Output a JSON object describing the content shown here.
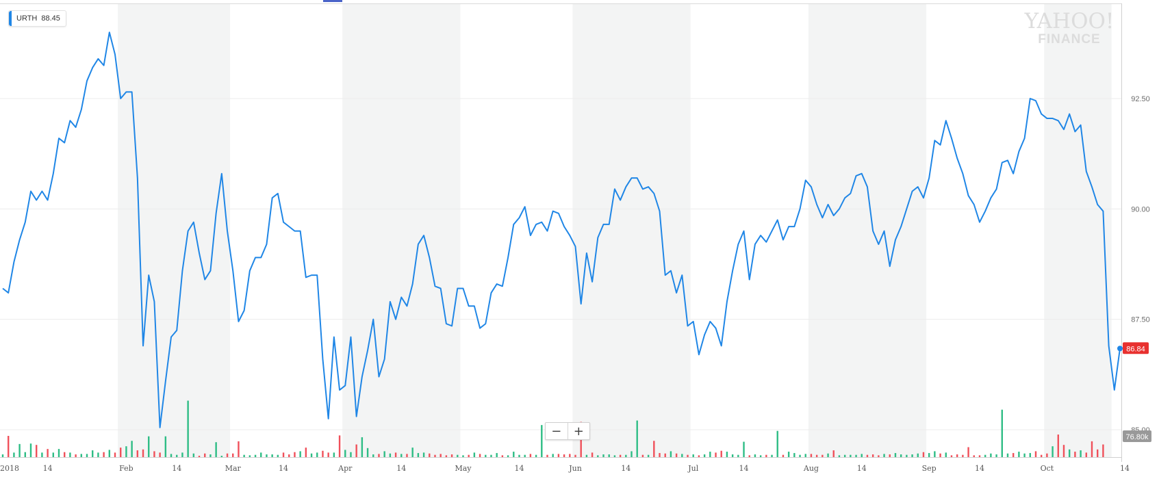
{
  "legend": {
    "symbol": "URTH",
    "value": "88.45"
  },
  "watermark": {
    "line1": "YAHOO!",
    "line2": "FINANCE"
  },
  "zoom": {
    "minus": "−",
    "plus": "+"
  },
  "price_badge": {
    "value": "86.84",
    "color": "#e8312f"
  },
  "volume_badge": {
    "value": "76.80k",
    "color": "#999999"
  },
  "colors": {
    "line": "#1f86e6",
    "up": "#2ebd85",
    "down": "#f0505a",
    "band": "#f3f4f4"
  },
  "chart_data": {
    "type": "line",
    "title": "",
    "x_start": "2018-01-02",
    "x_ticks": [
      "2018",
      "14",
      "Feb",
      "14",
      "Mar",
      "14",
      "Apr",
      "14",
      "May",
      "14",
      "Jun",
      "14",
      "Jul",
      "14",
      "Aug",
      "14",
      "Sep",
      "14",
      "Oct",
      "14"
    ],
    "y_ticks": [
      "92.50",
      "90.00",
      "87.50",
      "85.00"
    ],
    "ylim": [
      84.75,
      94.8
    ],
    "grid": true,
    "series": [
      {
        "name": "URTH",
        "values": [
          88.2,
          88.1,
          88.8,
          89.3,
          89.7,
          90.4,
          90.2,
          90.4,
          90.2,
          90.8,
          91.6,
          91.5,
          92.0,
          91.85,
          92.25,
          92.9,
          93.2,
          93.4,
          93.25,
          94.0,
          93.5,
          92.5,
          92.65,
          92.65,
          90.7,
          86.9,
          88.5,
          87.9,
          85.05,
          86.1,
          87.1,
          87.25,
          88.6,
          89.5,
          89.7,
          89.0,
          88.4,
          88.6,
          89.9,
          90.8,
          89.5,
          88.6,
          87.45,
          87.7,
          88.6,
          88.9,
          88.9,
          89.2,
          90.25,
          90.35,
          89.7,
          89.6,
          89.5,
          89.5,
          88.45,
          88.5,
          88.5,
          86.6,
          85.25,
          87.1,
          85.9,
          86.0,
          87.1,
          85.3,
          86.2,
          86.8,
          87.5,
          86.2,
          86.6,
          87.9,
          87.5,
          88.0,
          87.8,
          88.3,
          89.2,
          89.4,
          88.9,
          88.25,
          88.2,
          87.4,
          87.35,
          88.2,
          88.2,
          87.8,
          87.8,
          87.3,
          87.4,
          88.1,
          88.3,
          88.25,
          88.9,
          89.65,
          89.8,
          90.05,
          89.4,
          89.65,
          89.7,
          89.5,
          89.95,
          89.9,
          89.6,
          89.4,
          89.15,
          87.85,
          89.0,
          88.35,
          89.35,
          89.65,
          89.65,
          90.45,
          90.2,
          90.5,
          90.7,
          90.7,
          90.45,
          90.5,
          90.35,
          89.95,
          88.5,
          88.6,
          88.1,
          88.5,
          87.35,
          87.45,
          86.7,
          87.15,
          87.45,
          87.3,
          86.9,
          87.9,
          88.6,
          89.2,
          89.5,
          88.4,
          89.2,
          89.4,
          89.25,
          89.5,
          89.75,
          89.3,
          89.6,
          89.6,
          90.0,
          90.65,
          90.5,
          90.1,
          89.8,
          90.1,
          89.85,
          90.0,
          90.25,
          90.35,
          90.75,
          90.8,
          90.5,
          89.5,
          89.2,
          89.5,
          88.7,
          89.3,
          89.6,
          90.0,
          90.4,
          90.5,
          90.25,
          90.7,
          91.55,
          91.45,
          92.0,
          91.6,
          91.15,
          90.8,
          90.3,
          90.1,
          89.7,
          89.95,
          90.25,
          90.45,
          91.05,
          91.1,
          90.8,
          91.3,
          91.6,
          92.5,
          92.45,
          92.15,
          92.05,
          92.05,
          92.0,
          91.8,
          92.15,
          91.75,
          91.9,
          90.85,
          90.5,
          90.1,
          89.95,
          86.9,
          85.9,
          86.84
        ]
      }
    ],
    "volume": {
      "values": [
        6,
        47,
        10,
        29,
        11,
        30,
        27,
        10,
        18,
        10,
        18,
        11,
        10,
        6,
        7,
        7,
        15,
        10,
        11,
        16,
        10,
        21,
        24,
        36,
        15,
        17,
        46,
        13,
        10,
        46,
        7,
        5,
        10,
        125,
        8,
        3,
        8,
        6,
        33,
        3,
        8,
        8,
        35,
        5,
        4,
        5,
        10,
        6,
        6,
        5,
        10,
        6,
        11,
        13,
        21,
        8,
        10,
        14,
        10,
        10,
        48,
        16,
        11,
        28,
        44,
        20,
        6,
        7,
        13,
        8,
        10,
        7,
        7,
        21,
        9,
        10,
        8,
        5,
        7,
        4,
        6,
        5,
        4,
        5,
        10,
        7,
        5,
        5,
        9,
        4,
        4,
        12,
        5,
        5,
        7,
        5,
        71,
        5,
        7,
        7,
        6,
        7,
        5,
        78,
        5,
        10,
        4,
        6,
        6,
        4,
        5,
        5,
        13,
        81,
        5,
        5,
        36,
        9,
        8,
        13,
        8,
        7,
        5,
        6,
        4,
        6,
        12,
        10,
        14,
        12,
        6,
        5,
        34,
        4,
        6,
        4,
        5,
        5,
        58,
        5,
        12,
        9,
        5,
        7,
        7,
        5,
        5,
        8,
        15,
        4,
        5,
        5,
        5,
        7,
        5,
        6,
        4,
        7,
        6,
        9,
        6,
        5,
        6,
        8,
        11,
        9,
        13,
        8,
        10,
        4,
        6,
        5,
        22,
        4,
        4,
        5,
        8,
        6,
        105,
        8,
        9,
        12,
        8,
        9,
        13,
        5,
        8,
        24,
        50,
        27,
        17,
        12,
        15,
        10,
        35,
        17,
        28
      ]
    }
  }
}
